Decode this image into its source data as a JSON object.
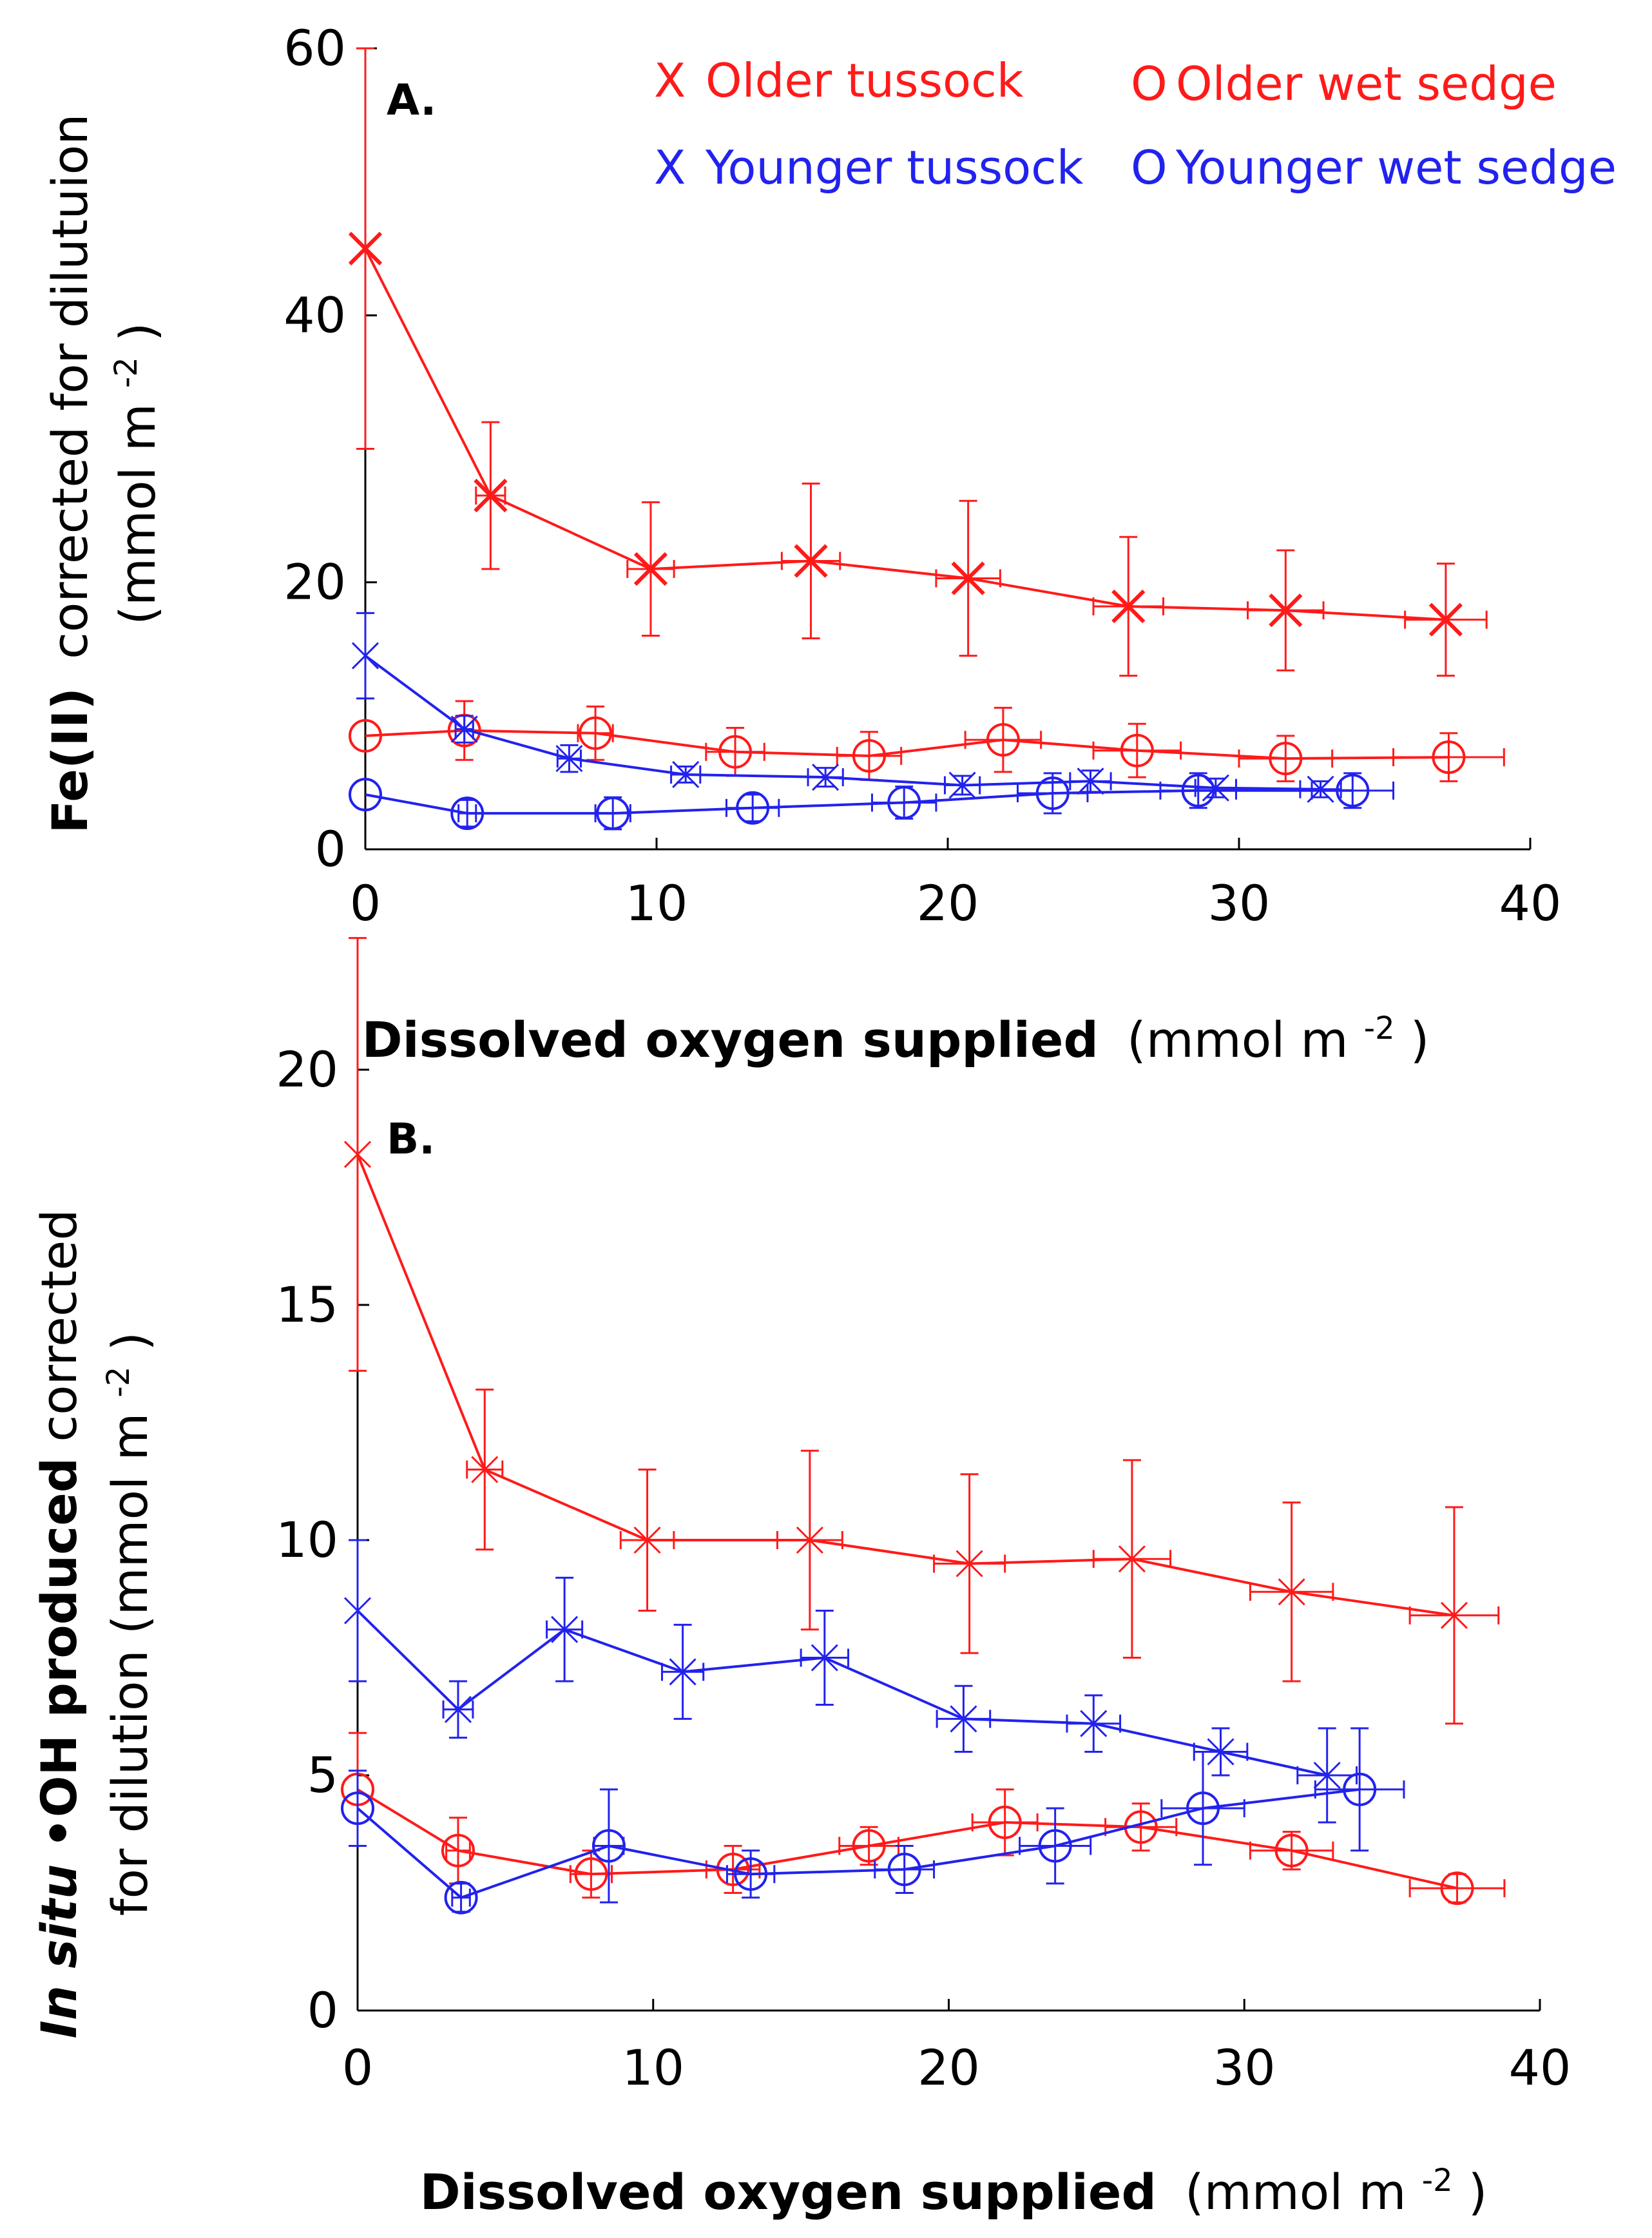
{
  "colors": {
    "red": "#ff1a1a",
    "blue": "#2222ee",
    "axis": "#000000"
  },
  "chart_data": [
    {
      "type": "line",
      "panel_label": "A.",
      "xlabel_bold": "Dissolved oxygen supplied",
      "xlabel_normal": "(mmol m",
      "xlabel_sup": "-2",
      "xlabel_end": ")",
      "ylabel_line1_bold": "Fe(II)",
      "ylabel_line1_normal": "corrected for dilutuion",
      "ylabel_line2_normal": "(mmol m",
      "ylabel_line2_sup": "-2",
      "ylabel_line2_end": ")",
      "xlim": [
        0,
        40
      ],
      "ylim": [
        0,
        60
      ],
      "xticks": [
        "0",
        "10",
        "20",
        "30",
        "40"
      ],
      "xtick_values": [
        0,
        10,
        20,
        30,
        40
      ],
      "yticks": [
        "0",
        "20",
        "40",
        "60"
      ],
      "ytick_values": [
        0,
        20,
        40,
        60
      ],
      "legend": [
        {
          "symbol": "X",
          "marker": "x",
          "label": "Older tussock",
          "color": "#ff1a1a"
        },
        {
          "symbol": "O",
          "marker": "o",
          "label": "Older wet sedge",
          "color": "#ff1a1a"
        },
        {
          "symbol": "X",
          "marker": "x",
          "label": "Younger tussock",
          "color": "#2222ee"
        },
        {
          "symbol": "O",
          "marker": "o",
          "label": "Younger wet sedge",
          "color": "#2222ee"
        }
      ],
      "series": [
        {
          "name": "Older tussock",
          "color": "#ff1a1a",
          "marker": "x",
          "msize": "large",
          "points": [
            {
              "x": 0,
              "y": 45,
              "yerr": 15,
              "xerr": 0
            },
            {
              "x": 4.3,
              "y": 26.5,
              "yerr": 5.5,
              "xerr": 0.5
            },
            {
              "x": 9.8,
              "y": 21,
              "yerr": 5,
              "xerr": 0.8
            },
            {
              "x": 15.3,
              "y": 21.6,
              "yerr": 5.8,
              "xerr": 1.0
            },
            {
              "x": 20.7,
              "y": 20.3,
              "yerr": 5.8,
              "xerr": 1.1
            },
            {
              "x": 26.2,
              "y": 18.2,
              "yerr": 5.2,
              "xerr": 1.2
            },
            {
              "x": 31.6,
              "y": 17.9,
              "yerr": 4.5,
              "xerr": 1.3
            },
            {
              "x": 37.1,
              "y": 17.2,
              "yerr": 4.2,
              "xerr": 1.4
            }
          ]
        },
        {
          "name": "Older wet sedge",
          "color": "#ff1a1a",
          "marker": "o",
          "msize": "normal",
          "points": [
            {
              "x": 0,
              "y": 8.5,
              "yerr": 0,
              "xerr": 0
            },
            {
              "x": 3.4,
              "y": 8.9,
              "yerr": 2.2,
              "xerr": 0.3
            },
            {
              "x": 7.9,
              "y": 8.7,
              "yerr": 2.0,
              "xerr": 0.6
            },
            {
              "x": 12.7,
              "y": 7.3,
              "yerr": 1.8,
              "xerr": 1.0
            },
            {
              "x": 17.3,
              "y": 7.0,
              "yerr": 1.8,
              "xerr": 1.1
            },
            {
              "x": 21.9,
              "y": 8.2,
              "yerr": 2.4,
              "xerr": 1.3
            },
            {
              "x": 26.5,
              "y": 7.4,
              "yerr": 2.0,
              "xerr": 1.5
            },
            {
              "x": 31.6,
              "y": 6.8,
              "yerr": 1.7,
              "xerr": 1.6
            },
            {
              "x": 37.2,
              "y": 6.9,
              "yerr": 1.8,
              "xerr": 1.9
            }
          ]
        },
        {
          "name": "Younger tussock",
          "color": "#2222ee",
          "marker": "x",
          "msize": "normal",
          "points": [
            {
              "x": 0,
              "y": 14.5,
              "yerr": 3.2,
              "xerr": 0
            },
            {
              "x": 3.4,
              "y": 9.0,
              "yerr": 1.0,
              "xerr": 0.3
            },
            {
              "x": 7.0,
              "y": 6.8,
              "yerr": 1.0,
              "xerr": 0.4
            },
            {
              "x": 11.0,
              "y": 5.6,
              "yerr": 0.6,
              "xerr": 0.5
            },
            {
              "x": 15.8,
              "y": 5.4,
              "yerr": 0.7,
              "xerr": 0.6
            },
            {
              "x": 20.5,
              "y": 4.8,
              "yerr": 0.7,
              "xerr": 0.6
            },
            {
              "x": 24.9,
              "y": 5.1,
              "yerr": 0.8,
              "xerr": 0.7
            },
            {
              "x": 29.2,
              "y": 4.6,
              "yerr": 0.7,
              "xerr": 0.7
            },
            {
              "x": 32.8,
              "y": 4.5,
              "yerr": 0.6,
              "xerr": 0.7
            }
          ]
        },
        {
          "name": "Younger wet sedge",
          "color": "#2222ee",
          "marker": "o",
          "msize": "normal",
          "points": [
            {
              "x": 0,
              "y": 4.1,
              "yerr": 0,
              "xerr": 0
            },
            {
              "x": 3.5,
              "y": 2.7,
              "yerr": 1.0,
              "xerr": 0.3
            },
            {
              "x": 8.5,
              "y": 2.7,
              "yerr": 1.2,
              "xerr": 0.6
            },
            {
              "x": 13.3,
              "y": 3.1,
              "yerr": 1.0,
              "xerr": 0.9
            },
            {
              "x": 18.5,
              "y": 3.5,
              "yerr": 1.2,
              "xerr": 1.1
            },
            {
              "x": 23.6,
              "y": 4.2,
              "yerr": 1.5,
              "xerr": 1.2
            },
            {
              "x": 28.6,
              "y": 4.4,
              "yerr": 1.3,
              "xerr": 1.3
            },
            {
              "x": 33.9,
              "y": 4.4,
              "yerr": 1.3,
              "xerr": 1.4
            }
          ]
        }
      ]
    },
    {
      "type": "line",
      "panel_label": "B.",
      "xlabel_bold": "Dissolved oxygen supplied",
      "xlabel_normal": "(mmol m",
      "xlabel_sup": "-2",
      "xlabel_end": ")",
      "ylabel_line1_italic": "In situ",
      "ylabel_line1_bold": " •OH produced",
      "ylabel_line1_normal": " corrected",
      "ylabel_line2_normal": "for dilution (mmol m",
      "ylabel_line2_sup": "-2",
      "ylabel_line2_end": ")",
      "xlim": [
        0,
        40
      ],
      "ylim": [
        0,
        20
      ],
      "xticks": [
        "0",
        "10",
        "20",
        "30",
        "40"
      ],
      "xtick_values": [
        0,
        10,
        20,
        30,
        40
      ],
      "yticks": [
        "0",
        "5",
        "10",
        "15",
        "20"
      ],
      "ytick_values": [
        0,
        5,
        10,
        15,
        20
      ],
      "series": [
        {
          "name": "Older tussock",
          "color": "#ff1a1a",
          "marker": "x",
          "msize": "normal",
          "points": [
            {
              "x": 0,
              "y": 18.2,
              "yerr": 4.6,
              "xerr": 0
            },
            {
              "x": 4.3,
              "y": 11.5,
              "yerr": 1.7,
              "xerr": 0.6
            },
            {
              "x": 9.8,
              "y": 10.0,
              "yerr": 1.5,
              "xerr": 0.9
            },
            {
              "x": 15.3,
              "y": 10.0,
              "yerr": 1.9,
              "xerr": 1.1
            },
            {
              "x": 20.7,
              "y": 9.5,
              "yerr": 1.9,
              "xerr": 1.2
            },
            {
              "x": 26.2,
              "y": 9.6,
              "yerr": 2.1,
              "xerr": 1.3
            },
            {
              "x": 31.6,
              "y": 8.9,
              "yerr": 1.9,
              "xerr": 1.4
            },
            {
              "x": 37.1,
              "y": 8.4,
              "yerr": 2.3,
              "xerr": 1.5
            }
          ]
        },
        {
          "name": "Younger tussock",
          "color": "#2222ee",
          "marker": "x",
          "msize": "normal",
          "points": [
            {
              "x": 0,
              "y": 8.5,
              "yerr": 1.5,
              "xerr": 0
            },
            {
              "x": 3.4,
              "y": 6.4,
              "yerr": 0.6,
              "xerr": 0.5
            },
            {
              "x": 7.0,
              "y": 8.1,
              "yerr": 1.1,
              "xerr": 0.6
            },
            {
              "x": 11.0,
              "y": 7.2,
              "yerr": 1.0,
              "xerr": 0.7
            },
            {
              "x": 15.8,
              "y": 7.5,
              "yerr": 1.0,
              "xerr": 0.8
            },
            {
              "x": 20.5,
              "y": 6.2,
              "yerr": 0.7,
              "xerr": 0.9
            },
            {
              "x": 24.9,
              "y": 6.1,
              "yerr": 0.6,
              "xerr": 0.9
            },
            {
              "x": 29.2,
              "y": 5.5,
              "yerr": 0.5,
              "xerr": 0.9
            },
            {
              "x": 32.8,
              "y": 5.0,
              "yerr": 1.0,
              "xerr": 1.0
            }
          ]
        },
        {
          "name": "Older wet sedge",
          "color": "#ff1a1a",
          "marker": "o",
          "msize": "normal",
          "points": [
            {
              "x": 0,
              "y": 4.7,
              "yerr": 1.2,
              "xerr": 0
            },
            {
              "x": 3.4,
              "y": 3.4,
              "yerr": 0.7,
              "xerr": 0.4
            },
            {
              "x": 7.9,
              "y": 2.9,
              "yerr": 0.5,
              "xerr": 0.7
            },
            {
              "x": 12.7,
              "y": 3.0,
              "yerr": 0.5,
              "xerr": 0.9
            },
            {
              "x": 17.3,
              "y": 3.5,
              "yerr": 0.4,
              "xerr": 1.0
            },
            {
              "x": 21.9,
              "y": 4.0,
              "yerr": 0.7,
              "xerr": 1.1
            },
            {
              "x": 26.5,
              "y": 3.9,
              "yerr": 0.5,
              "xerr": 1.2
            },
            {
              "x": 31.6,
              "y": 3.4,
              "yerr": 0.4,
              "xerr": 1.4
            },
            {
              "x": 37.2,
              "y": 2.6,
              "yerr": 0.3,
              "xerr": 1.6
            }
          ]
        },
        {
          "name": "Younger wet sedge",
          "color": "#2222ee",
          "marker": "o",
          "msize": "normal",
          "points": [
            {
              "x": 0,
              "y": 4.3,
              "yerr": 0.8,
              "xerr": 0
            },
            {
              "x": 3.5,
              "y": 2.4,
              "yerr": 0.3,
              "xerr": 0.3
            },
            {
              "x": 8.5,
              "y": 3.5,
              "yerr": 1.2,
              "xerr": 0.5
            },
            {
              "x": 13.3,
              "y": 2.9,
              "yerr": 0.5,
              "xerr": 0.8
            },
            {
              "x": 18.5,
              "y": 3.0,
              "yerr": 0.5,
              "xerr": 1.0
            },
            {
              "x": 23.6,
              "y": 3.5,
              "yerr": 0.8,
              "xerr": 1.2
            },
            {
              "x": 28.6,
              "y": 4.3,
              "yerr": 1.2,
              "xerr": 1.4
            },
            {
              "x": 33.9,
              "y": 4.7,
              "yerr": 1.3,
              "xerr": 1.5
            }
          ]
        }
      ]
    }
  ]
}
